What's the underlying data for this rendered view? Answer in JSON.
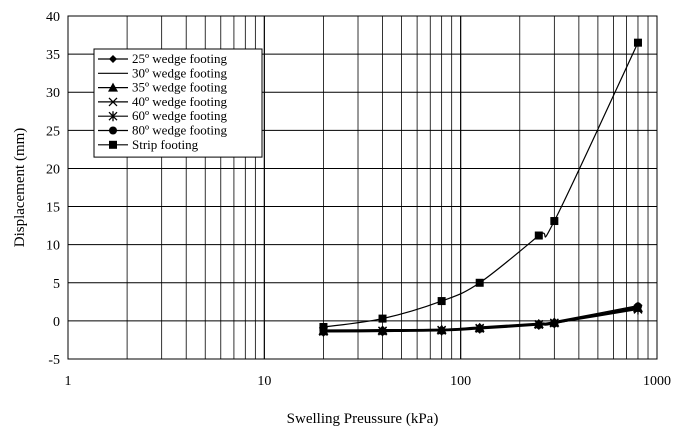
{
  "chart_data": {
    "type": "line",
    "title": "",
    "xlabel": "Swelling Preussure (kPa)",
    "ylabel": "Displacement (mm)",
    "xscale": "log",
    "xlim": [
      1,
      1000
    ],
    "ylim": [
      -5,
      40
    ],
    "x_ticks": [
      1,
      10,
      100,
      1000
    ],
    "x_tick_labels": [
      "1",
      "10",
      "100",
      "1000"
    ],
    "y_ticks": [
      -5,
      0,
      5,
      10,
      15,
      20,
      25,
      30,
      35,
      40
    ],
    "y_tick_labels": [
      "-5",
      "0",
      "5",
      "10",
      "15",
      "20",
      "25",
      "30",
      "35",
      "40"
    ],
    "grid": true,
    "legend_position": "top-left",
    "series": [
      {
        "name": "25º wedge footing",
        "marker": "diamond",
        "x": [
          20,
          40,
          80,
          125,
          250,
          300,
          800
        ],
        "y": [
          -1.2,
          -1.15,
          -1.1,
          -0.8,
          -0.3,
          -0.1,
          2.0
        ]
      },
      {
        "name": "30º wedge footing",
        "marker": "none",
        "x": [
          20,
          40,
          80,
          125,
          250,
          300,
          800
        ],
        "y": [
          -1.25,
          -1.2,
          -1.1,
          -0.85,
          -0.35,
          -0.15,
          1.8
        ]
      },
      {
        "name": "35º wedge footing",
        "marker": "triangle",
        "x": [
          20,
          40,
          80,
          125,
          250,
          300,
          800
        ],
        "y": [
          -1.3,
          -1.25,
          -1.15,
          -0.9,
          -0.4,
          -0.2,
          1.7
        ]
      },
      {
        "name": "40º wedge footing",
        "marker": "x",
        "x": [
          20,
          40,
          80,
          125,
          250,
          300,
          800
        ],
        "y": [
          -1.35,
          -1.3,
          -1.2,
          -0.95,
          -0.45,
          -0.25,
          1.6
        ]
      },
      {
        "name": "60º wedge footing",
        "marker": "star",
        "x": [
          20,
          40,
          80,
          125,
          250,
          300,
          800
        ],
        "y": [
          -1.4,
          -1.35,
          -1.25,
          -1.0,
          -0.5,
          -0.3,
          1.5
        ]
      },
      {
        "name": "80º wedge footing",
        "marker": "circle",
        "x": [
          20,
          40,
          80,
          125,
          250,
          300,
          800
        ],
        "y": [
          -1.45,
          -1.4,
          -1.3,
          -1.05,
          -0.55,
          -0.35,
          1.9
        ]
      },
      {
        "name": "Strip footing",
        "marker": "square",
        "x": [
          20,
          40,
          80,
          125,
          250,
          300,
          800
        ],
        "y": [
          -0.8,
          0.3,
          2.6,
          5.0,
          11.2,
          13.1,
          36.5
        ]
      }
    ]
  }
}
